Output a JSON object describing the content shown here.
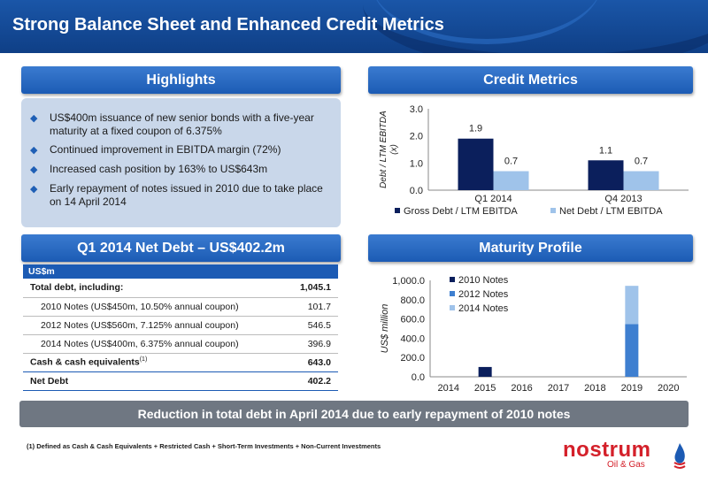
{
  "page": {
    "title": "Strong Balance Sheet and Enhanced Credit Metrics"
  },
  "highlights": {
    "heading": "Highlights",
    "items": [
      "US$400m issuance of new senior bonds with a five-year maturity at a fixed coupon of 6.375%",
      "Continued improvement in EBITDA margin (72%)",
      "Increased cash position by 163% to US$643m",
      "Early repayment of notes issued in 2010 due to take place on 14 April 2014"
    ]
  },
  "net_debt": {
    "heading": "Q1 2014 Net Debt – US$402.2m",
    "unit_header": "US$m",
    "rows": [
      {
        "label": "Total debt, including:",
        "value": "1,045.1"
      },
      {
        "label": "2010 Notes (US$450m, 10.50% annual coupon)",
        "value": "101.7"
      },
      {
        "label": "2012 Notes (US$560m, 7.125% annual coupon)",
        "value": "546.5"
      },
      {
        "label": "2014 Notes (US$400m, 6.375% annual coupon)",
        "value": "396.9"
      },
      {
        "label": "Cash & cash equivalents",
        "footnote_ref": "(1)",
        "value": "643.0"
      },
      {
        "label": "Net Debt",
        "value": "402.2"
      }
    ]
  },
  "credit_metrics": {
    "heading": "Credit Metrics"
  },
  "maturity_profile": {
    "heading": "Maturity Profile"
  },
  "banner": "Reduction in total debt in April 2014 due to early repayment of 2010 notes",
  "footnote": "(1) Defined as Cash & Cash Equivalents + Restricted Cash + Short-Term Investments + Non-Current Investments",
  "logo": {
    "name": "nostrum",
    "sub": "Oil & Gas"
  },
  "colors": {
    "brand_blue": "#1c5bb4",
    "navy_series": "#0b1f5c",
    "mid_series": "#3e7fd0",
    "light_series": "#9fc3ea",
    "logo_red": "#d4202a"
  },
  "chart_data": [
    {
      "type": "bar",
      "categories": [
        "Q1 2014",
        "Q4 2013"
      ],
      "series": [
        {
          "name": "Gross Debt / LTM EBITDA",
          "values": [
            1.9,
            1.1
          ]
        },
        {
          "name": "Net Debt / LTM EBITDA",
          "values": [
            0.7,
            0.7
          ]
        }
      ],
      "ylabel": "Debt / LTM EBITDA (x)",
      "ylim": [
        0,
        3
      ],
      "yticks": [
        "0.0",
        "1.0",
        "2.0",
        "3.0"
      ],
      "data_labels": true,
      "legend": "bottom"
    },
    {
      "type": "bar",
      "stacked": true,
      "categories": [
        "2014",
        "2015",
        "2016",
        "2017",
        "2018",
        "2019",
        "2020"
      ],
      "series": [
        {
          "name": "2010 Notes",
          "values": [
            0,
            101.7,
            0,
            0,
            0,
            0,
            0
          ]
        },
        {
          "name": "2012 Notes",
          "values": [
            0,
            0,
            0,
            0,
            0,
            546.5,
            0
          ]
        },
        {
          "name": "2014 Notes",
          "values": [
            0,
            0,
            0,
            0,
            0,
            396.9,
            0
          ]
        }
      ],
      "ylabel": "US$ million",
      "ylim": [
        0,
        1000
      ],
      "yticks": [
        "0.0",
        "200.0",
        "400.0",
        "600.0",
        "800.0",
        "1,000.0"
      ],
      "legend": "top-left"
    }
  ]
}
